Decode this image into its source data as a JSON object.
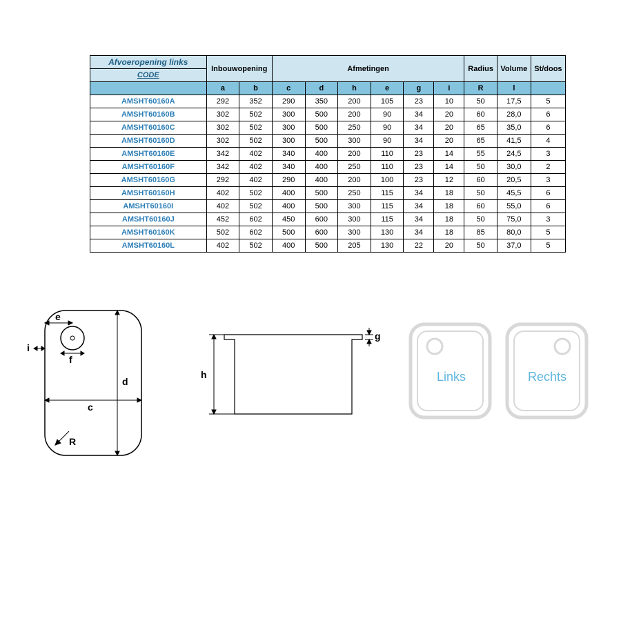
{
  "table": {
    "header": {
      "title_line1": "Afvoeropening links",
      "title_line2": "CODE",
      "group_inbouw": "Inbouwopening",
      "group_afmet": "Afmetingen",
      "col_radius": "Radius",
      "col_volume": "Volume",
      "col_stdoos": "St/doos",
      "sub": [
        "a",
        "b",
        "c",
        "d",
        "h",
        "e",
        "g",
        "i",
        "R",
        "l"
      ]
    },
    "colors": {
      "header_light": "#cfe6f1",
      "header_dark": "#85c4df",
      "border": "#000000",
      "code_text": "#2d7fb8",
      "body_bg": "#ffffff"
    },
    "col_widths_pct": [
      23,
      6.5,
      6.5,
      6.5,
      6.5,
      6.5,
      6.5,
      6,
      6,
      6.5,
      6.5,
      6.5
    ],
    "rows": [
      {
        "code": "AMSHT60160A",
        "a": "292",
        "b": "352",
        "c": "290",
        "d": "350",
        "h": "200",
        "e": "105",
        "g": "23",
        "i": "10",
        "R": "50",
        "l": "17,5",
        "st": "5"
      },
      {
        "code": "AMSHT60160B",
        "a": "302",
        "b": "502",
        "c": "300",
        "d": "500",
        "h": "200",
        "e": "90",
        "g": "34",
        "i": "20",
        "R": "60",
        "l": "28,0",
        "st": "6"
      },
      {
        "code": "AMSHT60160C",
        "a": "302",
        "b": "502",
        "c": "300",
        "d": "500",
        "h": "250",
        "e": "90",
        "g": "34",
        "i": "20",
        "R": "65",
        "l": "35,0",
        "st": "6"
      },
      {
        "code": "AMSHT60160D",
        "a": "302",
        "b": "502",
        "c": "300",
        "d": "500",
        "h": "300",
        "e": "90",
        "g": "34",
        "i": "20",
        "R": "65",
        "l": "41,5",
        "st": "4"
      },
      {
        "code": "AMSHT60160E",
        "a": "342",
        "b": "402",
        "c": "340",
        "d": "400",
        "h": "200",
        "e": "110",
        "g": "23",
        "i": "14",
        "R": "55",
        "l": "24,5",
        "st": "3"
      },
      {
        "code": "AMSHT60160F",
        "a": "342",
        "b": "402",
        "c": "340",
        "d": "400",
        "h": "250",
        "e": "110",
        "g": "23",
        "i": "14",
        "R": "50",
        "l": "30,0",
        "st": "2"
      },
      {
        "code": "AMSHT60160G",
        "a": "292",
        "b": "402",
        "c": "290",
        "d": "400",
        "h": "200",
        "e": "100",
        "g": "23",
        "i": "12",
        "R": "60",
        "l": "20,5",
        "st": "3"
      },
      {
        "code": "AMSHT60160H",
        "a": "402",
        "b": "502",
        "c": "400",
        "d": "500",
        "h": "250",
        "e": "115",
        "g": "34",
        "i": "18",
        "R": "50",
        "l": "45,5",
        "st": "6"
      },
      {
        "code": "AMSHT60160I",
        "a": "402",
        "b": "502",
        "c": "400",
        "d": "500",
        "h": "300",
        "e": "115",
        "g": "34",
        "i": "18",
        "R": "60",
        "l": "55,0",
        "st": "6"
      },
      {
        "code": "AMSHT60160J",
        "a": "452",
        "b": "602",
        "c": "450",
        "d": "600",
        "h": "300",
        "e": "115",
        "g": "34",
        "i": "18",
        "R": "50",
        "l": "75,0",
        "st": "3"
      },
      {
        "code": "AMSHT60160K",
        "a": "502",
        "b": "602",
        "c": "500",
        "d": "600",
        "h": "300",
        "e": "130",
        "g": "34",
        "i": "18",
        "R": "85",
        "l": "80,0",
        "st": "5"
      },
      {
        "code": "AMSHT60160L",
        "a": "402",
        "b": "502",
        "c": "400",
        "d": "500",
        "h": "205",
        "e": "130",
        "g": "22",
        "i": "20",
        "R": "50",
        "l": "37,0",
        "st": "5"
      }
    ]
  },
  "diagrams": {
    "topview": {
      "labels": {
        "e": "e",
        "i": "i",
        "f": "f",
        "c": "c",
        "d": "d",
        "R": "R"
      },
      "stroke": "#000"
    },
    "sideview": {
      "labels": {
        "h": "h",
        "g": "g"
      },
      "stroke": "#000"
    },
    "links_label": "Links",
    "rechts_label": "Rechts",
    "mini_stroke": "#d8d8d8",
    "label_color": "#5fb6df"
  }
}
